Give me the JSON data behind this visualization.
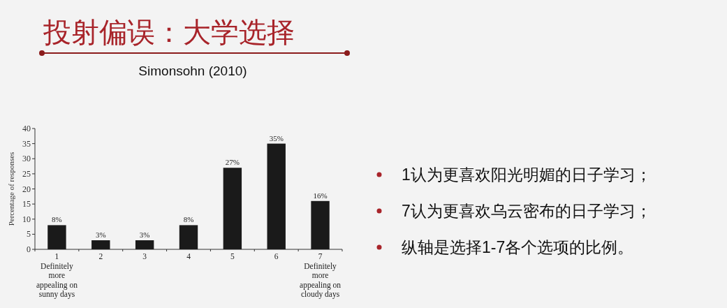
{
  "chart_data": {
    "type": "bar",
    "title": "投射偏误：大学选择",
    "subtitle": "Simonsohn (2010)",
    "ylabel": "Percentage of responses",
    "categories": [
      "1\nDefinitely\nmore\nappealing on\nsunny days",
      "2",
      "3",
      "4",
      "5",
      "6",
      "7\nDefinitely\nmore\nappealing on\ncloudy days"
    ],
    "values": [
      8,
      3,
      3,
      8,
      27,
      35,
      16
    ],
    "value_labels": [
      "8%",
      "3%",
      "3%",
      "8%",
      "27%",
      "35%",
      "16%"
    ],
    "color": "#1a1a1a",
    "ylim": [
      0,
      40
    ],
    "yticks": [
      0,
      5,
      10,
      15,
      20,
      25,
      30,
      35,
      40
    ],
    "annotations": [
      "1认为更喜欢阳光明媚的日子学习；",
      "7认为更喜欢乌云密布的日子学习；",
      "纵轴是选择1-7各个选项的比例。"
    ]
  }
}
